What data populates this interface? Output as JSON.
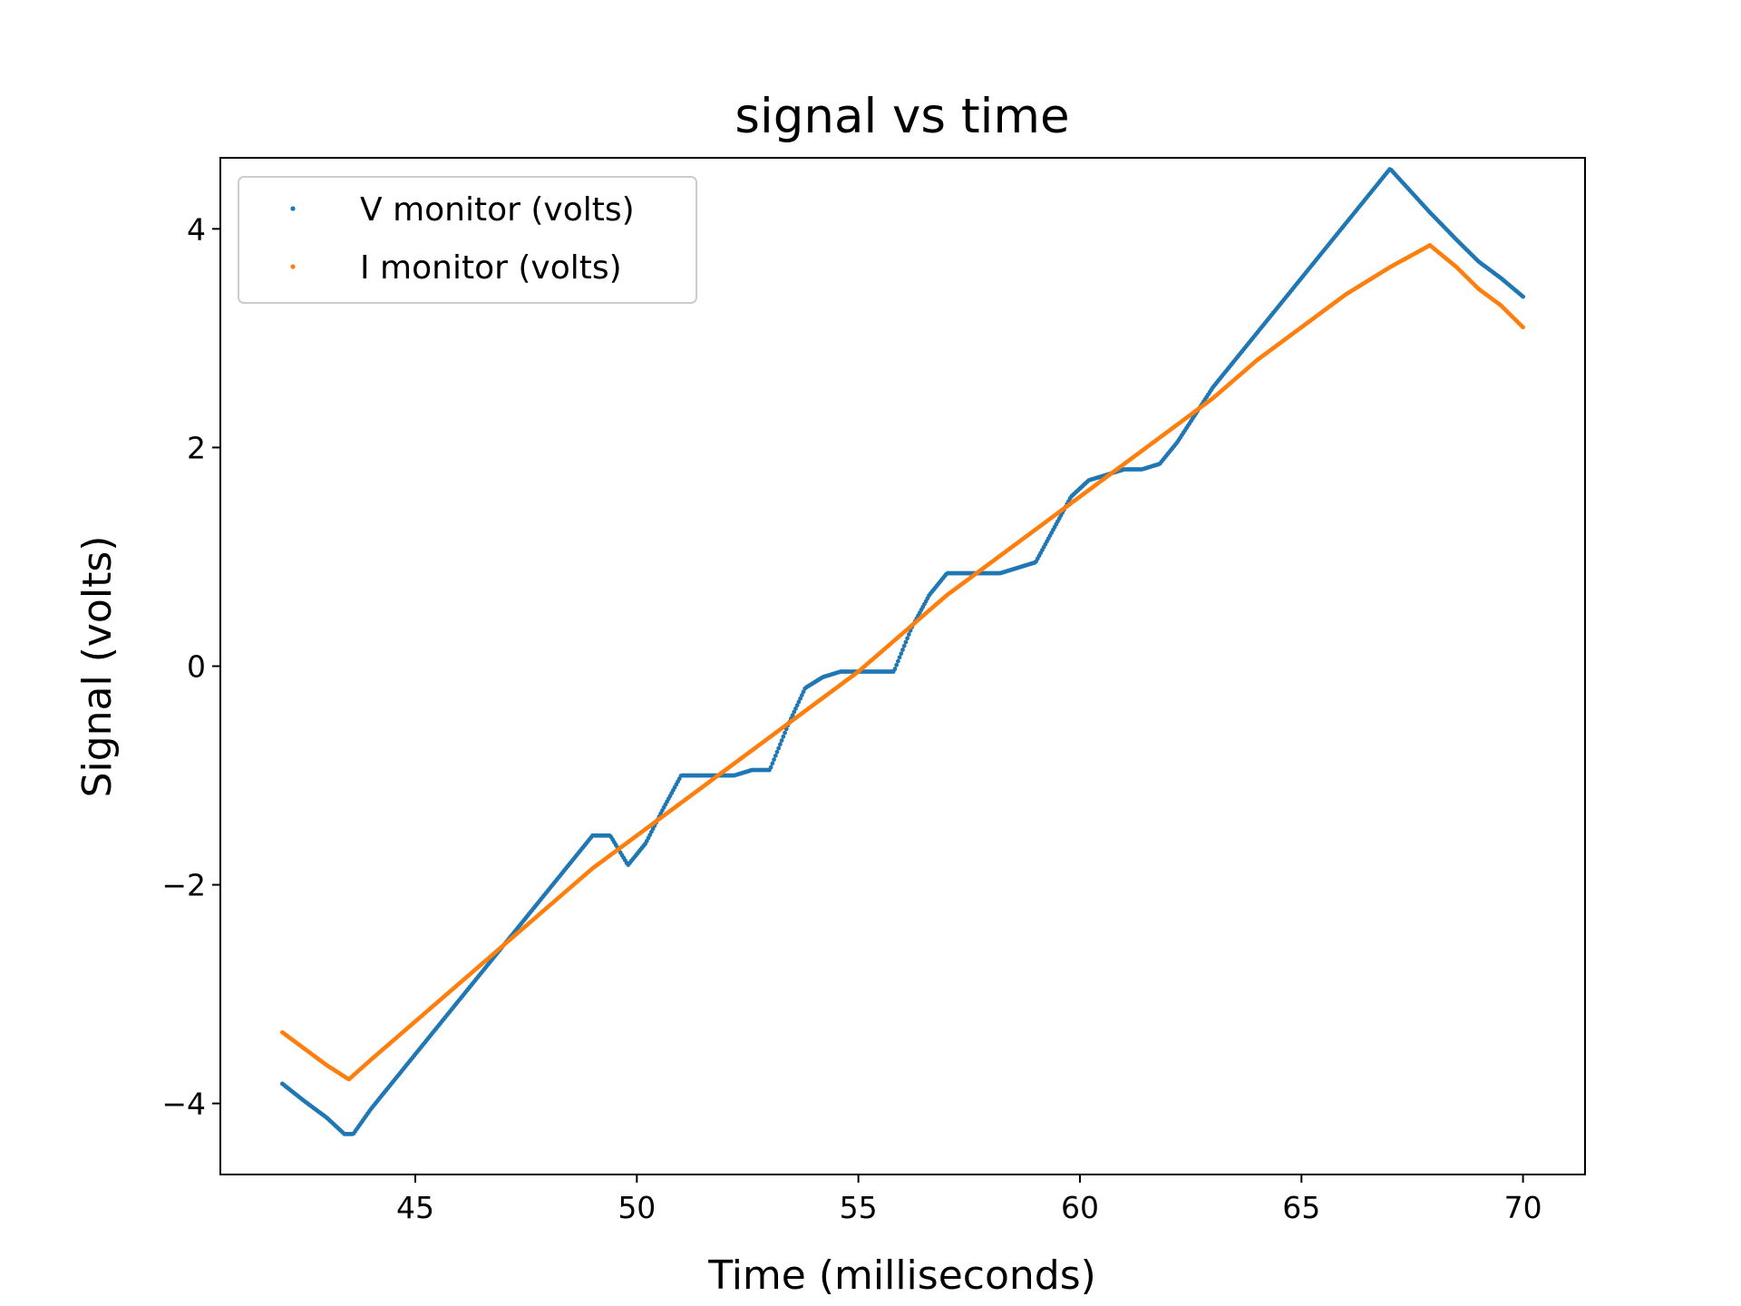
{
  "chart_data": {
    "type": "scatter",
    "title": "signal vs time",
    "xlabel": "Time (milliseconds)",
    "ylabel": "Signal (volts)",
    "xlim": [
      40.6,
      71.4
    ],
    "ylim": [
      -4.65,
      4.65
    ],
    "xticks": [
      45,
      50,
      55,
      60,
      65,
      70
    ],
    "xtick_labels": [
      "45",
      "50",
      "55",
      "60",
      "65",
      "70"
    ],
    "yticks": [
      -4,
      -2,
      0,
      2,
      4
    ],
    "ytick_labels": [
      "−4",
      "−2",
      "0",
      "2",
      "4"
    ],
    "grid": false,
    "legend_position": "upper-left",
    "series": [
      {
        "name": "V monitor (volts)",
        "color": "#1f77b4",
        "x": [
          42.0,
          42.5,
          43.0,
          43.4,
          43.6,
          44.0,
          45.0,
          46.0,
          47.0,
          48.0,
          49.0,
          49.4,
          49.8,
          50.2,
          50.6,
          51.0,
          51.4,
          51.8,
          52.2,
          52.6,
          53.0,
          53.4,
          53.8,
          54.2,
          54.6,
          55.0,
          55.4,
          55.8,
          56.2,
          56.6,
          57.0,
          57.4,
          57.8,
          58.2,
          58.6,
          59.0,
          59.4,
          59.8,
          60.2,
          60.6,
          61.0,
          61.4,
          61.8,
          62.2,
          62.6,
          63.0,
          64.0,
          65.0,
          66.0,
          67.0,
          67.9,
          68.5,
          69.0,
          69.5,
          70.0
        ],
        "y": [
          -3.82,
          -3.98,
          -4.13,
          -4.28,
          -4.28,
          -4.05,
          -3.55,
          -3.05,
          -2.55,
          -2.05,
          -1.55,
          -1.55,
          -1.82,
          -1.62,
          -1.3,
          -1.0,
          -1.0,
          -1.0,
          -1.0,
          -0.95,
          -0.95,
          -0.55,
          -0.2,
          -0.1,
          -0.05,
          -0.05,
          -0.05,
          -0.05,
          0.35,
          0.65,
          0.85,
          0.85,
          0.85,
          0.85,
          0.9,
          0.95,
          1.25,
          1.55,
          1.7,
          1.75,
          1.8,
          1.8,
          1.85,
          2.05,
          2.3,
          2.55,
          3.05,
          3.55,
          4.05,
          4.55,
          4.15,
          3.9,
          3.7,
          3.55,
          3.38
        ]
      },
      {
        "name": "I monitor (volts)",
        "color": "#ff7f0e",
        "x": [
          42.0,
          42.5,
          43.0,
          43.5,
          44.0,
          45.0,
          46.0,
          47.0,
          48.0,
          49.0,
          50.0,
          51.0,
          52.0,
          53.0,
          54.0,
          55.0,
          56.0,
          57.0,
          58.0,
          59.0,
          60.0,
          61.0,
          62.0,
          63.0,
          64.0,
          65.0,
          66.0,
          67.0,
          67.9,
          68.5,
          69.0,
          69.5,
          70.0
        ],
        "y": [
          -3.35,
          -3.5,
          -3.65,
          -3.78,
          -3.6,
          -3.25,
          -2.9,
          -2.55,
          -2.2,
          -1.85,
          -1.55,
          -1.25,
          -0.95,
          -0.65,
          -0.35,
          -0.05,
          0.3,
          0.65,
          0.95,
          1.25,
          1.55,
          1.85,
          2.15,
          2.45,
          2.8,
          3.1,
          3.4,
          3.65,
          3.85,
          3.65,
          3.45,
          3.3,
          3.1
        ]
      }
    ]
  }
}
